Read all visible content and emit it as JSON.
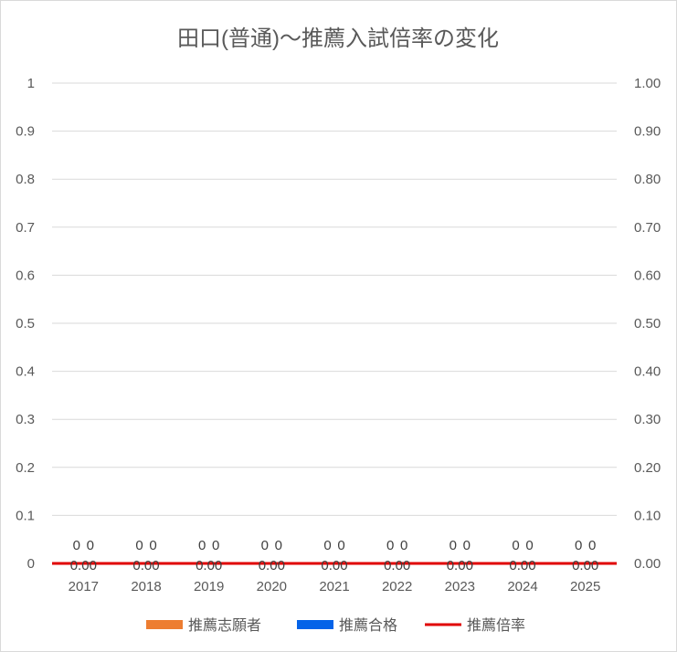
{
  "chart_data": {
    "type": "bar",
    "title": "田口(普通)〜推薦入試倍率の変化",
    "categories": [
      "2017",
      "2018",
      "2019",
      "2020",
      "2021",
      "2022",
      "2023",
      "2024",
      "2025"
    ],
    "series": [
      {
        "name": "推薦志願者",
        "type": "bar",
        "axis": "left",
        "color": "#ed7d31",
        "values": [
          0,
          0,
          0,
          0,
          0,
          0,
          0,
          0,
          0
        ],
        "labels": [
          "0",
          "0",
          "0",
          "0",
          "0",
          "0",
          "0",
          "0",
          "0"
        ]
      },
      {
        "name": "推薦合格",
        "type": "bar",
        "axis": "left",
        "color": "#0563e8",
        "values": [
          0,
          0,
          0,
          0,
          0,
          0,
          0,
          0,
          0
        ],
        "labels": [
          "0",
          "0",
          "0",
          "0",
          "0",
          "0",
          "0",
          "0",
          "0"
        ]
      },
      {
        "name": "推薦倍率",
        "type": "line",
        "axis": "right",
        "color": "#e00000",
        "values": [
          0,
          0,
          0,
          0,
          0,
          0,
          0,
          0,
          0
        ],
        "labels": [
          "0.00",
          "0.00",
          "0.00",
          "0.00",
          "0.00",
          "0.00",
          "0.00",
          "0.00",
          "0.00"
        ]
      }
    ],
    "y_left": {
      "range": [
        0,
        1
      ],
      "ticks": [
        "0",
        "0.1",
        "0.2",
        "0.3",
        "0.4",
        "0.5",
        "0.6",
        "0.7",
        "0.8",
        "0.9",
        "1"
      ]
    },
    "y_right": {
      "range": [
        0,
        1
      ],
      "ticks": [
        "0.00",
        "0.10",
        "0.20",
        "0.30",
        "0.40",
        "0.50",
        "0.60",
        "0.70",
        "0.80",
        "0.90",
        "1.00"
      ]
    },
    "grid": true,
    "legend_position": "bottom"
  }
}
